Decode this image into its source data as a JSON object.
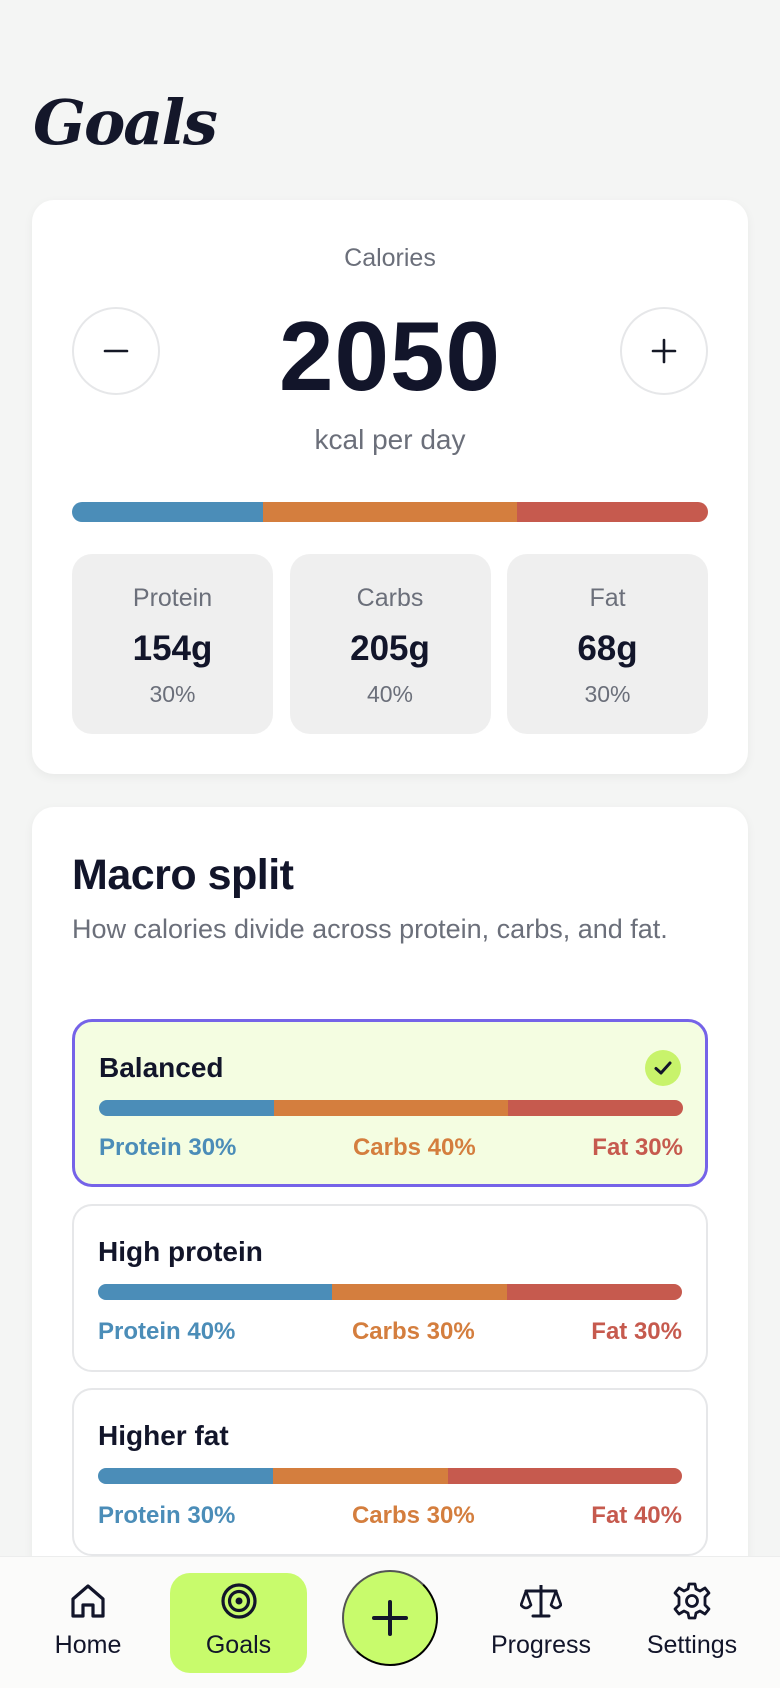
{
  "header": {
    "title": "Goals"
  },
  "calories": {
    "label": "Calories",
    "value": "2050",
    "unit": "kcal per day",
    "decrement_icon": "minus-icon",
    "increment_icon": "plus-icon",
    "distribution": {
      "protein": 30,
      "carbs": 40,
      "fat": 30
    }
  },
  "macros": [
    {
      "name": "Protein",
      "grams": "154g",
      "percent": "30%"
    },
    {
      "name": "Carbs",
      "grams": "205g",
      "percent": "40%"
    },
    {
      "name": "Fat",
      "grams": "68g",
      "percent": "30%"
    }
  ],
  "macro_split": {
    "title": "Macro split",
    "description": "How calories divide across protein, carbs, and fat.",
    "options": [
      {
        "name": "Balanced",
        "selected": true,
        "protein": 30,
        "carbs": 40,
        "fat": 30,
        "protein_label": "Protein 30%",
        "carbs_label": "Carbs 40%",
        "fat_label": "Fat 30%"
      },
      {
        "name": "High protein",
        "selected": false,
        "protein": 40,
        "carbs": 30,
        "fat": 30,
        "protein_label": "Protein 40%",
        "carbs_label": "Carbs 30%",
        "fat_label": "Fat 30%"
      },
      {
        "name": "Higher fat",
        "selected": false,
        "protein": 30,
        "carbs": 30,
        "fat": 40,
        "protein_label": "Protein 30%",
        "carbs_label": "Carbs 30%",
        "fat_label": "Fat 40%"
      }
    ]
  },
  "nav": {
    "items": [
      {
        "label": "Home",
        "icon": "home-icon"
      },
      {
        "label": "Goals",
        "icon": "target-icon",
        "active": true
      },
      {
        "label": "Progress",
        "icon": "scale-icon"
      },
      {
        "label": "Settings",
        "icon": "gear-icon"
      }
    ],
    "fab_icon": "plus-icon"
  },
  "colors": {
    "protein": "#4b8db8",
    "carbs": "#d47e3e",
    "fat": "#c65a4e",
    "accent": "#c8fb6c",
    "selected_border": "#7563e8"
  }
}
